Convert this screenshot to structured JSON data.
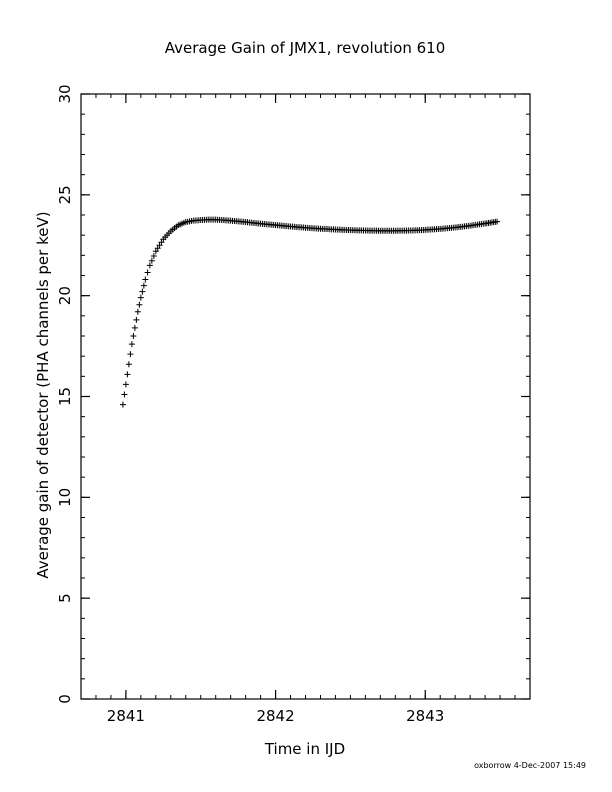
{
  "chart_data": {
    "type": "scatter",
    "title": "Average Gain of JMX1, revolution 610",
    "xlabel": "Time in IJD",
    "ylabel": "Average gain of detector (PHA channels per keV)",
    "xlim": [
      2840.7,
      2843.7
    ],
    "ylim": [
      0,
      30
    ],
    "x_ticks": [
      2841,
      2842,
      2843
    ],
    "x_tick_labels": [
      "2841",
      "2842",
      "2843"
    ],
    "y_ticks": [
      0,
      5,
      10,
      15,
      20,
      25,
      30
    ],
    "y_tick_labels": [
      "0",
      "5",
      "10",
      "15",
      "20",
      "25",
      "30"
    ],
    "x_minor_step": 0.1,
    "y_minor_step": 1,
    "grid": false,
    "marker": "plus",
    "color": "#000000",
    "series": [
      {
        "x": [
          2840.98,
          2841.0,
          2841.02,
          2841.04,
          2841.06,
          2841.08,
          2841.1,
          2841.13,
          2841.16,
          2841.2,
          2841.25,
          2841.3,
          2841.35,
          2841.4,
          2841.45,
          2841.5,
          2841.55,
          2841.6,
          2841.65,
          2841.7,
          2841.8,
          2841.9,
          2842.0,
          2842.1,
          2842.2,
          2842.3,
          2842.4,
          2842.5,
          2842.6,
          2842.7,
          2842.8,
          2842.9,
          2843.0,
          2843.1,
          2843.2,
          2843.3,
          2843.4,
          2843.48
        ],
        "y": [
          14.6,
          15.6,
          16.6,
          17.6,
          18.4,
          19.2,
          19.9,
          20.8,
          21.5,
          22.2,
          22.8,
          23.2,
          23.5,
          23.65,
          23.72,
          23.75,
          23.77,
          23.77,
          23.75,
          23.72,
          23.65,
          23.57,
          23.5,
          23.43,
          23.37,
          23.32,
          23.28,
          23.25,
          23.23,
          23.22,
          23.22,
          23.23,
          23.26,
          23.31,
          23.38,
          23.47,
          23.58,
          23.67
        ]
      }
    ]
  },
  "footer": {
    "stamp": "oxborrow  4-Dec-2007 15:49"
  }
}
